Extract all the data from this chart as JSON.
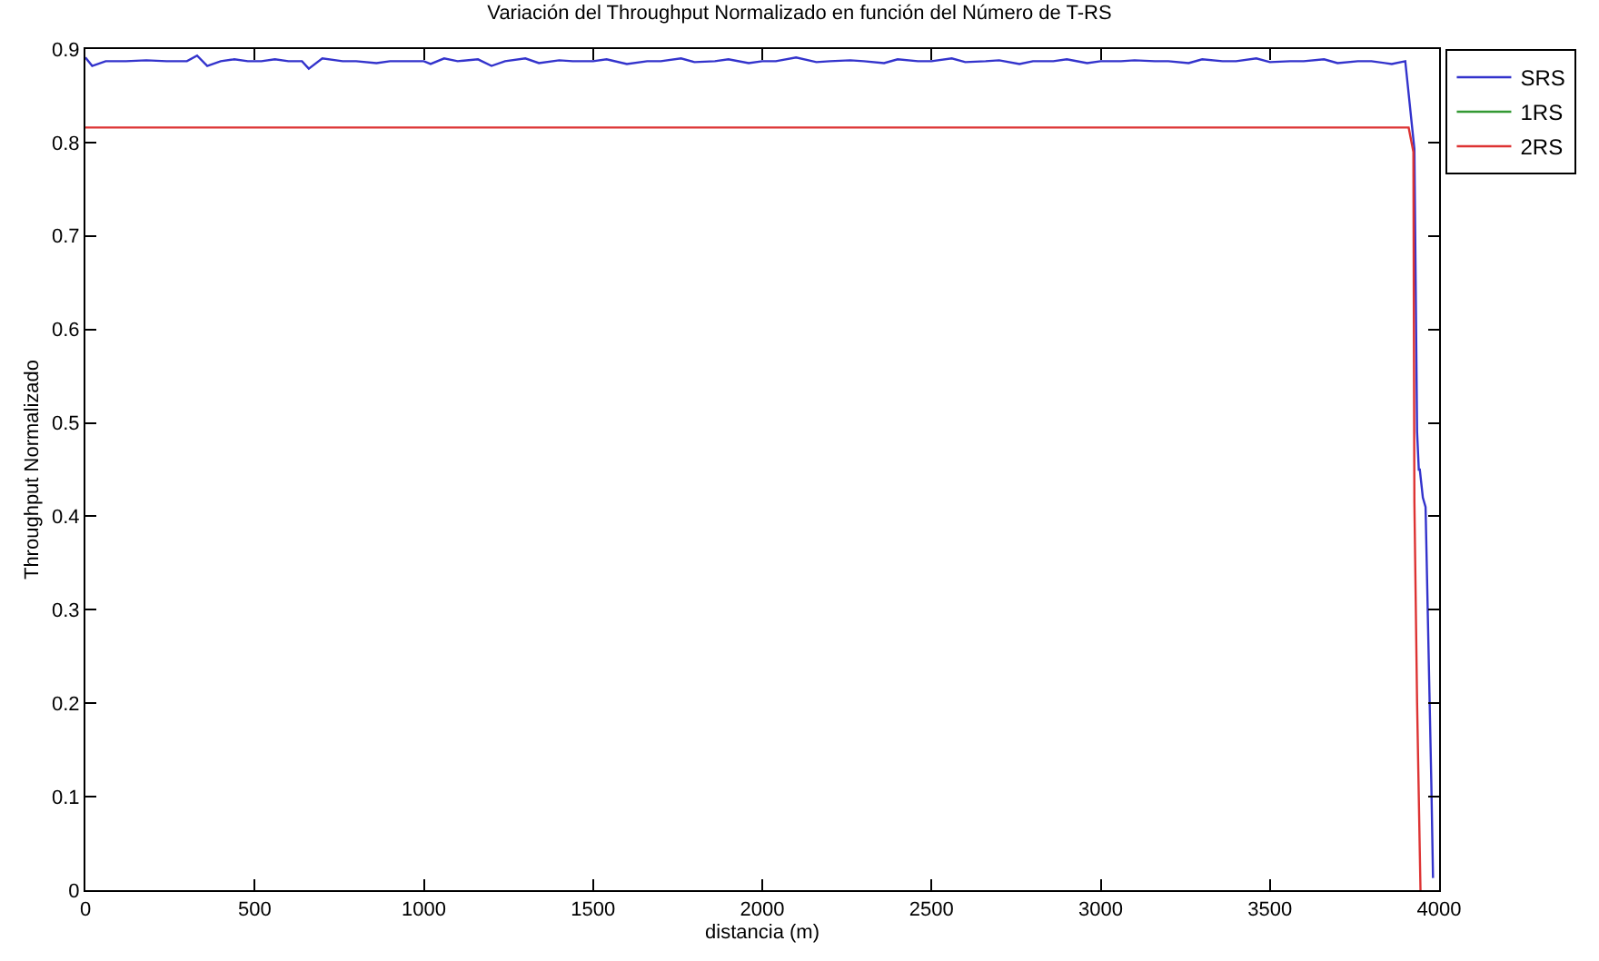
{
  "chart_data": {
    "type": "line",
    "title": "Variación del Throughput Normalizado en función del Número de T-RS",
    "xlabel": "distancia (m)",
    "ylabel": "Throughput Normalizado",
    "xlim": [
      0,
      4000
    ],
    "ylim": [
      0,
      0.9
    ],
    "xticks": [
      0,
      500,
      1000,
      1500,
      2000,
      2500,
      3000,
      3500,
      4000
    ],
    "yticks": [
      0,
      0.1,
      0.2,
      0.3,
      0.4,
      0.5,
      0.6,
      0.7,
      0.8,
      0.9
    ],
    "legend": "top right",
    "marker": "none",
    "line_style": "solid",
    "series": [
      {
        "name": "SRS",
        "color": "#3333cc",
        "x": [
          0,
          20,
          60,
          120,
          180,
          240,
          300,
          330,
          360,
          400,
          440,
          480,
          520,
          560,
          600,
          640,
          660,
          700,
          760,
          800,
          860,
          900,
          960,
          1000,
          1020,
          1060,
          1100,
          1160,
          1200,
          1240,
          1300,
          1340,
          1400,
          1440,
          1500,
          1540,
          1600,
          1660,
          1700,
          1760,
          1800,
          1860,
          1900,
          1960,
          2000,
          2040,
          2100,
          2160,
          2200,
          2260,
          2300,
          2360,
          2400,
          2460,
          2500,
          2560,
          2600,
          2660,
          2700,
          2760,
          2800,
          2860,
          2900,
          2960,
          3000,
          3060,
          3100,
          3160,
          3200,
          3260,
          3300,
          3360,
          3400,
          3460,
          3500,
          3560,
          3600,
          3660,
          3700,
          3760,
          3800,
          3860,
          3900,
          3927,
          3935,
          3940,
          3943,
          3952,
          3960,
          3977,
          3982
        ],
        "values": [
          0.891,
          0.882,
          0.887,
          0.887,
          0.888,
          0.887,
          0.887,
          0.893,
          0.882,
          0.887,
          0.889,
          0.887,
          0.887,
          0.889,
          0.887,
          0.887,
          0.879,
          0.89,
          0.887,
          0.887,
          0.885,
          0.887,
          0.887,
          0.887,
          0.884,
          0.89,
          0.887,
          0.889,
          0.882,
          0.887,
          0.89,
          0.885,
          0.888,
          0.887,
          0.887,
          0.889,
          0.884,
          0.887,
          0.887,
          0.89,
          0.886,
          0.887,
          0.889,
          0.885,
          0.887,
          0.887,
          0.891,
          0.886,
          0.887,
          0.888,
          0.887,
          0.885,
          0.889,
          0.887,
          0.887,
          0.89,
          0.886,
          0.887,
          0.888,
          0.884,
          0.887,
          0.887,
          0.889,
          0.885,
          0.887,
          0.887,
          0.888,
          0.887,
          0.887,
          0.885,
          0.889,
          0.887,
          0.887,
          0.89,
          0.886,
          0.887,
          0.887,
          0.889,
          0.885,
          0.887,
          0.887,
          0.884,
          0.887,
          0.793,
          0.49,
          0.45,
          0.45,
          0.42,
          0.41,
          0.115,
          0.013
        ]
      },
      {
        "name": "1RS",
        "color": "#339933",
        "values": [
          null
        ]
      },
      {
        "name": "2RS",
        "color": "#dd3333",
        "x": [
          0,
          3910,
          3924,
          3927,
          3935,
          3945
        ],
        "values": [
          0.816,
          0.816,
          0.79,
          0.416,
          0.2,
          0
        ]
      }
    ]
  }
}
